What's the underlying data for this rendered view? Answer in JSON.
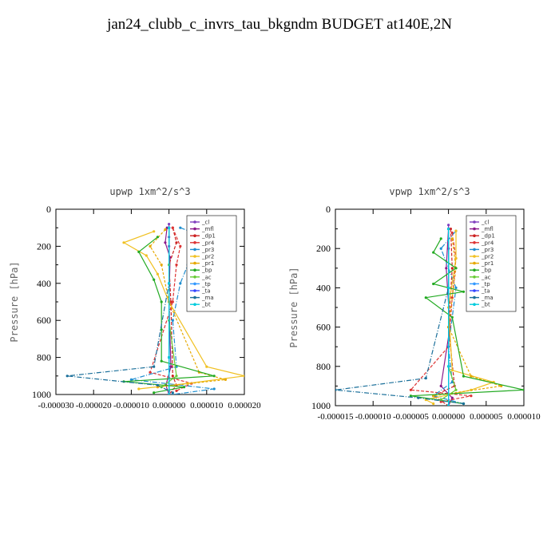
{
  "page": {
    "title": "jan24_clubb_c_invrs_tau_bkgndm  BUDGET at140E,2N"
  },
  "legend_names": [
    "_cl",
    "_mfl",
    "_dp1",
    "_pr4",
    "_pr3",
    "_pr2",
    "_pr1",
    "_bp",
    "_ac",
    "_tp",
    "_ta",
    "_ma",
    "_bt"
  ],
  "series_colors": {
    "_cl": "#7f3fbf",
    "_mfl": "#8b1a8b",
    "_dp1": "#cc2222",
    "_pr4": "#dd3333",
    "_pr3": "#1f8fd0",
    "_pr2": "#f0c020",
    "_pr1": "#e6a800",
    "_bp": "#22aa22",
    "_ac": "#66cc33",
    "_tp": "#3399ff",
    "_ta": "#3344ff",
    "_ma": "#1a6f9a",
    "_bt": "#00ccdd"
  },
  "chart_data": [
    {
      "type": "line",
      "title": "upwp   1xm^2/s^3",
      "ylabel": "Pressure [hPa]",
      "xlim": [
        -3e-05,
        2e-05
      ],
      "ylim": [
        1000,
        0
      ],
      "ytick_labels": [
        "0",
        "200",
        "400",
        "600",
        "800",
        "1000"
      ],
      "xtick_labels": [
        "-0.000030",
        "-0.000020",
        "-0.000010",
        "0.000000",
        "0.000010",
        "0.000020"
      ],
      "legend_position": "top-right",
      "series": [
        {
          "name": "_cl",
          "values": [
            [
              0,
              80
            ],
            [
              0,
              150
            ],
            [
              0,
              200
            ],
            [
              0,
              400
            ],
            [
              0,
              800
            ],
            [
              0,
              1000
            ]
          ]
        },
        {
          "name": "_mfl",
          "values": [
            [
              -5e-07,
              100
            ],
            [
              -1e-06,
              180
            ],
            [
              3e-07,
              260
            ],
            [
              0,
              500
            ],
            [
              5e-07,
              850
            ],
            [
              -8e-07,
              950
            ],
            [
              0,
              1000
            ]
          ]
        },
        {
          "name": "_dp1",
          "values": [
            [
              1e-06,
              100
            ],
            [
              2e-06,
              180
            ],
            [
              0,
              300
            ],
            [
              5e-07,
              500
            ],
            [
              1e-06,
              900
            ],
            [
              2e-06,
              950
            ],
            [
              0,
              1000
            ]
          ]
        },
        {
          "name": "_pr4",
          "values": [
            [
              1e-06,
              100
            ],
            [
              3e-06,
              200
            ],
            [
              2e-06,
              300
            ],
            [
              1e-06,
              500
            ],
            [
              -5e-06,
              880
            ],
            [
              6e-06,
              940
            ],
            [
              2e-06,
              980
            ]
          ]
        },
        {
          "name": "_pr3",
          "values": [
            [
              3e-06,
              100
            ],
            [
              1.5e-05,
              190
            ],
            [
              5e-06,
              300
            ],
            [
              3e-06,
              400
            ],
            [
              1e-06,
              600
            ],
            [
              2e-06,
              850
            ],
            [
              -1e-05,
              920
            ],
            [
              1.2e-05,
              970
            ],
            [
              1e-06,
              1000
            ]
          ]
        },
        {
          "name": "_pr2",
          "values": [
            [
              -4e-06,
              120
            ],
            [
              -1.2e-05,
              180
            ],
            [
              -6e-06,
              250
            ],
            [
              -3e-06,
              350
            ],
            [
              0,
              500
            ],
            [
              1e-05,
              850
            ],
            [
              2e-05,
              900
            ],
            [
              5e-06,
              940
            ],
            [
              -8e-06,
              970
            ]
          ]
        },
        {
          "name": "_pr1",
          "values": [
            [
              -1e-06,
              110
            ],
            [
              -5e-06,
              200
            ],
            [
              -2e-06,
              300
            ],
            [
              0,
              500
            ],
            [
              8e-06,
              880
            ],
            [
              1.5e-05,
              920
            ],
            [
              -3e-06,
              960
            ]
          ]
        },
        {
          "name": "_bp",
          "values": [
            [
              -3e-06,
              150
            ],
            [
              -8e-06,
              230
            ],
            [
              -4e-06,
              380
            ],
            [
              -2e-06,
              500
            ],
            [
              -2e-06,
              650
            ],
            [
              -2e-06,
              820
            ],
            [
              1.2e-05,
              900
            ],
            [
              -1.2e-05,
              930
            ],
            [
              4e-06,
              960
            ],
            [
              -4e-06,
              990
            ]
          ]
        },
        {
          "name": "_ac",
          "values": [
            [
              0,
              100
            ],
            [
              0,
              300
            ],
            [
              0,
              600
            ],
            [
              2e-06,
              900
            ],
            [
              -2e-06,
              960
            ]
          ]
        },
        {
          "name": "_tp",
          "values": [
            [
              0,
              100
            ],
            [
              0,
              400
            ],
            [
              0,
              800
            ],
            [
              0,
              1000
            ]
          ]
        },
        {
          "name": "_ta",
          "values": [
            [
              0,
              100
            ],
            [
              0,
              400
            ],
            [
              0,
              800
            ],
            [
              0,
              1000
            ]
          ]
        },
        {
          "name": "_ma",
          "values": [
            [
              0,
              100
            ],
            [
              0,
              400
            ],
            [
              -4e-06,
              850
            ],
            [
              -2.7e-05,
              900
            ],
            [
              -3e-06,
              950
            ],
            [
              1e-06,
              990
            ]
          ]
        },
        {
          "name": "_bt",
          "values": [
            [
              0,
              100
            ],
            [
              0,
              400
            ],
            [
              0,
              800
            ],
            [
              0,
              1000
            ]
          ]
        }
      ]
    },
    {
      "type": "line",
      "title": "vpwp   1xm^2/s^3",
      "ylabel": "Pressure [hPa]",
      "xlim": [
        -1.5e-05,
        1e-05
      ],
      "ylim": [
        1000,
        0
      ],
      "ytick_labels": [
        "0",
        "200",
        "400",
        "600",
        "800",
        "1000"
      ],
      "xtick_labels": [
        "-0.000015",
        "-0.000010",
        "-0.000005",
        "0.000000",
        "0.000005",
        "0.000010"
      ],
      "legend_position": "top-right",
      "series": [
        {
          "name": "_cl",
          "values": [
            [
              0,
              80
            ],
            [
              0,
              200
            ],
            [
              0,
              400
            ],
            [
              0,
              800
            ],
            [
              0,
              1000
            ]
          ]
        },
        {
          "name": "_mfl",
          "values": [
            [
              0,
              100
            ],
            [
              -3e-07,
              300
            ],
            [
              2e-07,
              600
            ],
            [
              -1e-06,
              900
            ],
            [
              5e-07,
              960
            ],
            [
              0,
              1000
            ]
          ]
        },
        {
          "name": "_dp1",
          "values": [
            [
              3e-07,
              100
            ],
            [
              5e-07,
              300
            ],
            [
              0,
              600
            ],
            [
              8e-07,
              900
            ],
            [
              -2e-06,
              950
            ],
            [
              0,
              1000
            ]
          ]
        },
        {
          "name": "_pr4",
          "values": [
            [
              5e-07,
              120
            ],
            [
              1e-06,
              250
            ],
            [
              5e-07,
              450
            ],
            [
              0,
              700
            ],
            [
              -5e-06,
              920
            ],
            [
              3e-06,
              950
            ],
            [
              -1e-06,
              980
            ]
          ]
        },
        {
          "name": "_pr3",
          "values": [
            [
              1e-06,
              110
            ],
            [
              -1e-06,
              200
            ],
            [
              1e-06,
              400
            ],
            [
              0,
              700
            ],
            [
              5e-07,
              880
            ],
            [
              -2e-06,
              950
            ],
            [
              2e-06,
              990
            ]
          ]
        },
        {
          "name": "_pr2",
          "values": [
            [
              1e-06,
              110
            ],
            [
              1e-06,
              250
            ],
            [
              0,
              500
            ],
            [
              5e-07,
              820
            ],
            [
              6e-06,
              880
            ],
            [
              3e-06,
              920
            ],
            [
              -3e-06,
              970
            ],
            [
              -2e-06,
              990
            ]
          ]
        },
        {
          "name": "_pr1",
          "values": [
            [
              5e-07,
              150
            ],
            [
              1e-06,
              300
            ],
            [
              0,
              600
            ],
            [
              3e-06,
              850
            ],
            [
              7e-06,
              900
            ],
            [
              -2e-06,
              950
            ]
          ]
        },
        {
          "name": "_bp",
          "values": [
            [
              -1e-06,
              150
            ],
            [
              -2e-06,
              220
            ],
            [
              1e-06,
              300
            ],
            [
              -2e-06,
              380
            ],
            [
              2e-06,
              420
            ],
            [
              -3e-06,
              450
            ],
            [
              5e-07,
              550
            ],
            [
              2e-06,
              850
            ],
            [
              1e-05,
              920
            ],
            [
              -5e-06,
              950
            ],
            [
              2e-06,
              990
            ]
          ]
        },
        {
          "name": "_ac",
          "values": [
            [
              0,
              100
            ],
            [
              0,
              400
            ],
            [
              0,
              800
            ],
            [
              1e-06,
              920
            ],
            [
              -1e-06,
              970
            ]
          ]
        },
        {
          "name": "_tp",
          "values": [
            [
              0,
              100
            ],
            [
              0,
              400
            ],
            [
              0,
              800
            ],
            [
              0,
              1000
            ]
          ]
        },
        {
          "name": "_ta",
          "values": [
            [
              0,
              100
            ],
            [
              0,
              400
            ],
            [
              0,
              800
            ],
            [
              0,
              1000
            ]
          ]
        },
        {
          "name": "_ma",
          "values": [
            [
              0,
              100
            ],
            [
              0,
              400
            ],
            [
              -3e-06,
              860
            ],
            [
              -1.5e-05,
              920
            ],
            [
              -4e-06,
              960
            ],
            [
              2e-06,
              990
            ]
          ]
        },
        {
          "name": "_bt",
          "values": [
            [
              0,
              100
            ],
            [
              0,
              400
            ],
            [
              0,
              800
            ],
            [
              0,
              1000
            ]
          ]
        }
      ]
    }
  ]
}
